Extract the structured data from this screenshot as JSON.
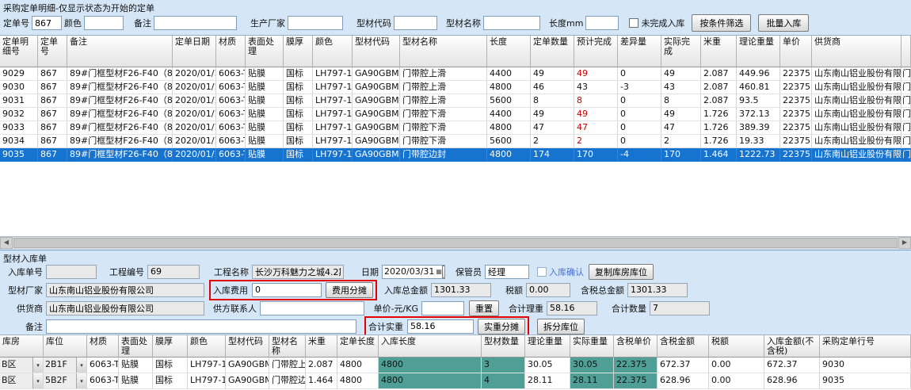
{
  "colors": {
    "selected_row": "#1673cf",
    "teal_highlight": "#4f9f96",
    "red_text": "#c80000",
    "red_box": "#e30000",
    "confirm_label_blue": "#4a6fd0"
  },
  "top": {
    "title": "采购定单明细-仅显示状态为开始的定单",
    "filters": {
      "order_no_label": "定单号",
      "order_no": "867",
      "color_label": "颜色",
      "color": "",
      "remark_label": "备注",
      "remark": "",
      "factory_label": "生产厂家",
      "factory": "",
      "code_label": "型材代码",
      "code": "",
      "name_label": "型材名称",
      "name": "",
      "length_label": "长度mm",
      "length": "",
      "unfinished_label": "未完成入库",
      "filter_button": "按条件筛选",
      "batch_button": "批量入库"
    },
    "table": {
      "headers": [
        "定单明细号",
        "定单号",
        "备注",
        "定单日期",
        "材质",
        "表面处理",
        "膜厚",
        "颜色",
        "型材代码",
        "型材名称",
        "长度",
        "定单数量",
        "预计完成",
        "差异量",
        "实际完成",
        "米重",
        "理论重量",
        "单价",
        "供货商"
      ],
      "clipped_col_text": "门",
      "rows": [
        {
          "cells": [
            "9029",
            "867",
            "89#门框型材F26-F40（866+867）",
            "2020/01/13",
            "6063-T5",
            "贴膜",
            "国标",
            "LH797-1LL0",
            "GA90GBM03",
            "门带腔上滑",
            "4400",
            "49",
            "49",
            "0",
            "49",
            "2.087",
            "449.96",
            "22375",
            "山东南山铝业股份有限公司"
          ],
          "expected_red": true,
          "selected": false
        },
        {
          "cells": [
            "9030",
            "867",
            "89#门框型材F26-F40（866+867）",
            "2020/01/13",
            "6063-T5",
            "贴膜",
            "国标",
            "LH797-1LL0",
            "GA90GBM03",
            "门带腔上滑",
            "4800",
            "46",
            "43",
            "-3",
            "43",
            "2.087",
            "460.81",
            "22375",
            "山东南山铝业股份有限公司"
          ],
          "expected_red": false,
          "selected": false
        },
        {
          "cells": [
            "9031",
            "867",
            "89#门框型材F26-F40（866+867）",
            "2020/01/13",
            "6063-T5",
            "贴膜",
            "国标",
            "LH797-1LL0",
            "GA90GBM03",
            "门带腔上滑",
            "5600",
            "8",
            "8",
            "0",
            "8",
            "2.087",
            "93.5",
            "22375",
            "山东南山铝业股份有限公司"
          ],
          "expected_red": true,
          "selected": false
        },
        {
          "cells": [
            "9032",
            "867",
            "89#门框型材F26-F40（866+867）",
            "2020/01/13",
            "6063-T5",
            "贴膜",
            "国标",
            "LH797-1LL0",
            "GA90GBM04",
            "门带腔下滑",
            "4400",
            "49",
            "49",
            "0",
            "49",
            "1.726",
            "372.13",
            "22375",
            "山东南山铝业股份有限公司"
          ],
          "expected_red": true,
          "selected": false
        },
        {
          "cells": [
            "9033",
            "867",
            "89#门框型材F26-F40（866+867）",
            "2020/01/13",
            "6063-T5",
            "贴膜",
            "国标",
            "LH797-1LL0",
            "GA90GBM04",
            "门带腔下滑",
            "4800",
            "47",
            "47",
            "0",
            "47",
            "1.726",
            "389.39",
            "22375",
            "山东南山铝业股份有限公司"
          ],
          "expected_red": true,
          "selected": false
        },
        {
          "cells": [
            "9034",
            "867",
            "89#门框型材F26-F40（866+867）",
            "2020/01/13",
            "6063-T5",
            "贴膜",
            "国标",
            "LH797-1LL0",
            "GA90GBM04",
            "门带腔下滑",
            "5600",
            "2",
            "2",
            "0",
            "2",
            "1.726",
            "19.33",
            "22375",
            "山东南山铝业股份有限公司"
          ],
          "expected_red": true,
          "selected": false
        },
        {
          "cells": [
            "9035",
            "867",
            "89#门框型材F26-F40（866+867）",
            "2020/01/13",
            "6063-T5",
            "贴膜",
            "国标",
            "LH797-1LL0",
            "GA90GBM05",
            "门带腔边封",
            "4800",
            "174",
            "170",
            "-4",
            "170",
            "1.464",
            "1222.73",
            "22375",
            "山东南山铝业股份有限公司"
          ],
          "expected_red": false,
          "selected": true
        }
      ]
    }
  },
  "bottom": {
    "section_title": "型材入库单",
    "form": {
      "inbound_no_label": "入库单号",
      "inbound_no": "",
      "project_no_label": "工程编号",
      "project_no": "69",
      "project_name_label": "工程名称",
      "project_name": "长沙万科魅力之城4.2期",
      "date_label": "日期",
      "date": "2020/03/31",
      "keeper_label": "保管员",
      "keeper": "经理",
      "confirm_label": "入库确认",
      "copy_button": "复制库房库位",
      "factory_label": "型材厂家",
      "factory": "山东南山铝业股份有限公司",
      "fee_label": "入库费用",
      "fee": "0",
      "fee_button": "费用分摊",
      "total_label": "入库总金额",
      "total": "1301.33",
      "tax_label": "税额",
      "tax": "0.00",
      "tax_total_label": "含税总金额",
      "tax_total": "1301.33",
      "supplier_label": "供货商",
      "supplier": "山东南山铝业股份有限公司",
      "contact_label": "供方联系人",
      "contact": "",
      "unit_price_label": "单价-元/KG",
      "unit_price": "",
      "reset_button": "重置",
      "theory_label": "合计理重",
      "theory": "58.16",
      "qty_label": "合计数量",
      "qty": "7",
      "remark_label": "备注",
      "remark": "",
      "actual_label": "合计实重",
      "actual": "58.16",
      "actual_button": "实重分摊",
      "split_button": "拆分库位"
    },
    "table": {
      "headers": [
        "库房",
        "库位",
        "材质",
        "表面处理",
        "膜厚",
        "颜色",
        "型材代码",
        "型材名称",
        "米重",
        "定单长度",
        "入库长度",
        "型材数量",
        "理论重量",
        "实际重量",
        "含税单价",
        "含税金额",
        "税额",
        "入库金额(不含税)",
        "采购定单行号"
      ],
      "highlight_cols": [
        10,
        11,
        13,
        14
      ],
      "rows": [
        {
          "cells": [
            "B区",
            "2B1F",
            "6063-T5",
            "贴膜",
            "国标",
            "LH797-1LL0",
            "GA90GBM03",
            "门带腔上滑",
            "2.087",
            "4800",
            "4800",
            "3",
            "30.05",
            "30.05",
            "22.375",
            "672.37",
            "0.00",
            "672.37",
            "9030"
          ]
        },
        {
          "cells": [
            "B区",
            "5B2F",
            "6063-T5",
            "贴膜",
            "国标",
            "LH797-1LL0",
            "GA90GBM05",
            "门带腔边封",
            "1.464",
            "4800",
            "4800",
            "4",
            "28.11",
            "28.11",
            "22.375",
            "628.96",
            "0.00",
            "628.96",
            "9035"
          ]
        }
      ]
    }
  }
}
